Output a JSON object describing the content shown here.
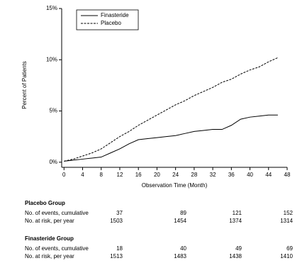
{
  "chart_data": {
    "type": "line",
    "y_label": "Percent of Patients",
    "x_label": "Observation Time (Month)",
    "x": [
      0,
      2,
      4,
      6,
      8,
      10,
      12,
      14,
      16,
      18,
      20,
      22,
      24,
      26,
      28,
      30,
      32,
      34,
      36,
      38,
      40,
      42,
      44,
      46
    ],
    "series": [
      {
        "name": "Finasteride",
        "color": "#000000",
        "dash": "solid",
        "values": [
          0.1,
          0.2,
          0.3,
          0.4,
          0.5,
          0.9,
          1.3,
          1.8,
          2.2,
          2.3,
          2.4,
          2.5,
          2.6,
          2.8,
          3.0,
          3.1,
          3.2,
          3.2,
          3.6,
          4.2,
          4.4,
          4.5,
          4.6,
          4.6
        ]
      },
      {
        "name": "Placebo",
        "color": "#000000",
        "dash": "dashed",
        "values": [
          0.1,
          0.3,
          0.6,
          0.9,
          1.3,
          1.9,
          2.5,
          3.0,
          3.6,
          4.1,
          4.6,
          5.1,
          5.6,
          6.0,
          6.5,
          6.9,
          7.3,
          7.8,
          8.1,
          8.6,
          9.0,
          9.3,
          9.8,
          10.2
        ]
      }
    ],
    "xlim": [
      -0.5,
      48
    ],
    "ylim": [
      -0.5,
      15
    ],
    "xticks": [
      0,
      4,
      8,
      12,
      16,
      20,
      24,
      28,
      32,
      36,
      40,
      44,
      48
    ],
    "yticks": [
      {
        "value": 0,
        "label": "0%"
      },
      {
        "value": 5,
        "label": "5%"
      },
      {
        "value": 10,
        "label": "10%"
      },
      {
        "value": 15,
        "label": "15%"
      }
    ],
    "grid": false,
    "legend": "top-left"
  },
  "table": {
    "groups": [
      {
        "title": "Placebo Group",
        "rows": [
          {
            "label": "No. of events, cumulative",
            "cells": [
              "37",
              "89",
              "121",
              "152"
            ]
          },
          {
            "label": "No. at risk, per year",
            "cells": [
              "1503",
              "1454",
              "1374",
              "1314"
            ]
          }
        ]
      },
      {
        "title": "Finasteride Group",
        "rows": [
          {
            "label": "No. of events, cumulative",
            "cells": [
              "18",
              "40",
              "49",
              "69"
            ]
          },
          {
            "label": "No. at risk, per year",
            "cells": [
              "1513",
              "1483",
              "1438",
              "1410"
            ]
          }
        ]
      }
    ]
  }
}
